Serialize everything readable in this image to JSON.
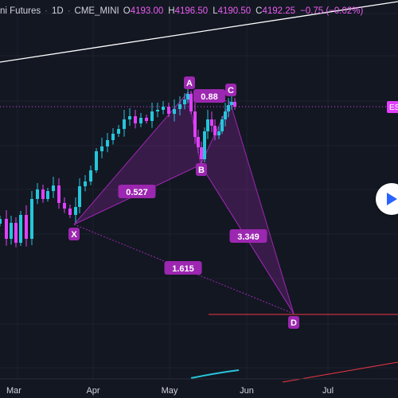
{
  "header": {
    "symbol": "ni Futures",
    "sep": "·",
    "interval": "1D",
    "exchange": "CME_MINI",
    "open_label": "O",
    "open": "4193.00",
    "high_label": "H",
    "high": "4196.50",
    "low_label": "L",
    "low": "4190.50",
    "close_label": "C",
    "close": "4192.25",
    "change": "−0.75 (−0.02%)"
  },
  "price_badge": "ES",
  "colors": {
    "background": "#131722",
    "up": "#26c6da",
    "down": "#e040fb",
    "pattern": "#9c27b0",
    "pattern_label_bg": "#9c27b0",
    "target_line": "#f23645",
    "price_line": "#e040fb",
    "trend_line": "#ffffff",
    "axis_text": "#d1d4dc"
  },
  "chart_data": {
    "type": "candlestick",
    "x_ticks": [
      "Mar",
      "Apr",
      "May",
      "Jun",
      "Jul"
    ],
    "pattern": {
      "name": "XABCD",
      "points": [
        {
          "label": "X",
          "date": "2023-03-24"
        },
        {
          "label": "A",
          "date": "2023-05-02"
        },
        {
          "label": "B",
          "date": "2023-05-12"
        },
        {
          "label": "C",
          "date": "2023-05-25"
        },
        {
          "label": "D",
          "date": "2023-06-16"
        }
      ],
      "ratios": [
        {
          "label": "0.527",
          "between": "X-B"
        },
        {
          "label": "0.88",
          "between": "A-C"
        },
        {
          "label": "3.349",
          "between": "B-D"
        },
        {
          "label": "1.615",
          "between": "X-D"
        }
      ]
    }
  },
  "play_icon": "play-icon"
}
